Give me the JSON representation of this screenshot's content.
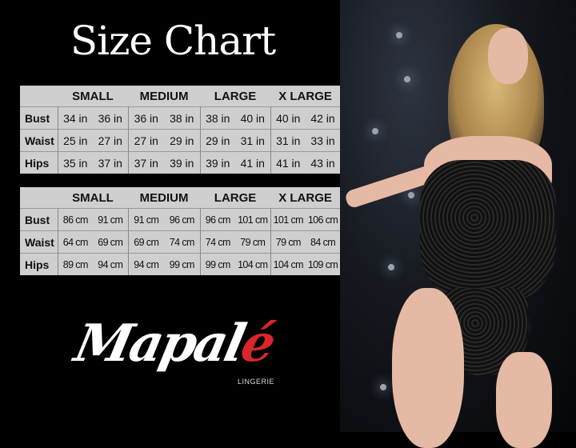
{
  "title": "Size Chart",
  "sizes": [
    "SMALL",
    "MEDIUM",
    "LARGE",
    "X LARGE"
  ],
  "inches_table": {
    "rows": [
      {
        "label": "Bust",
        "values": [
          "34 in",
          "36 in",
          "36 in",
          "38 in",
          "38 in",
          "40 in",
          "40 in",
          "42 in"
        ]
      },
      {
        "label": "Waist",
        "values": [
          "25 in",
          "27 in",
          "27 in",
          "29 in",
          "29 in",
          "31 in",
          "31 in",
          "33 in"
        ]
      },
      {
        "label": "Hips",
        "values": [
          "35 in",
          "37 in",
          "37 in",
          "39 in",
          "39 in",
          "41 in",
          "41 in",
          "43 in"
        ]
      }
    ]
  },
  "cm_table": {
    "rows": [
      {
        "label": "Bust",
        "values": [
          "86 cm",
          "91 cm",
          "91 cm",
          "96 cm",
          "96 cm",
          "101 cm",
          "101 cm",
          "106 cm"
        ]
      },
      {
        "label": "Waist",
        "values": [
          "64 cm",
          "69 cm",
          "69 cm",
          "74 cm",
          "74 cm",
          "79 cm",
          "79 cm",
          "84 cm"
        ]
      },
      {
        "label": "Hips",
        "values": [
          "89 cm",
          "94 cm",
          "94 cm",
          "99 cm",
          "99 cm",
          "104 cm",
          "104 cm",
          "109 cm"
        ]
      }
    ]
  },
  "brand": {
    "name_main": "Mapal",
    "name_accent": "é",
    "subtitle": "LINGERIE",
    "accent_color": "#d8262a"
  }
}
